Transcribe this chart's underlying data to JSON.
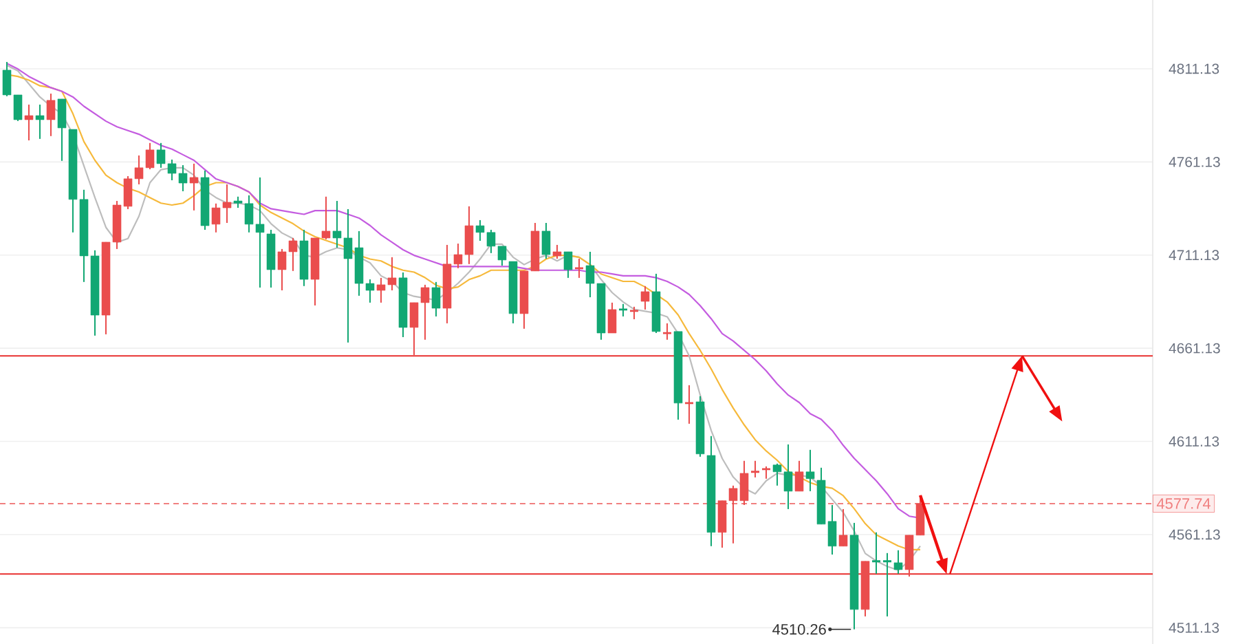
{
  "chart_data": {
    "type": "candlestick",
    "categories": [
      null,
      null,
      null,
      null,
      null,
      null,
      null,
      null,
      null,
      null,
      null,
      null,
      null,
      null,
      null,
      null,
      null,
      null,
      null,
      null,
      null,
      null,
      null,
      null,
      null,
      null,
      null,
      null,
      null,
      null,
      null,
      null,
      null,
      null,
      null,
      null,
      null,
      null,
      null,
      null,
      null,
      null,
      null,
      null,
      null,
      null,
      null,
      null,
      null,
      null,
      null,
      null,
      null,
      null,
      null,
      null,
      null,
      null,
      null,
      null,
      null,
      null,
      null,
      null,
      null,
      null,
      null,
      null,
      null,
      null,
      null,
      null,
      null,
      null,
      null,
      null,
      null,
      null,
      null,
      null,
      null,
      null,
      null,
      null
    ],
    "ohlc": [
      [
        4810.4,
        4814.8,
        4796.4,
        4797.1
      ],
      [
        4797.1,
        4797.1,
        4783.1,
        4783.8
      ],
      [
        4783.8,
        4791.9,
        4772.7,
        4786.0
      ],
      [
        4786.0,
        4791.9,
        4773.5,
        4783.8
      ],
      [
        4783.8,
        4797.8,
        4775.0,
        4794.2
      ],
      [
        4794.9,
        4794.9,
        4761.7,
        4779.4
      ],
      [
        4778.6,
        4778.6,
        4723.3,
        4741.0
      ],
      [
        4741.0,
        4746.2,
        4696.7,
        4710.7
      ],
      [
        4710.7,
        4713.7,
        4667.9,
        4678.9
      ],
      [
        4678.9,
        4718.1,
        4668.6,
        4718.1
      ],
      [
        4718.1,
        4740.2,
        4714.4,
        4738.0
      ],
      [
        4737.3,
        4753.5,
        4735.8,
        4752.1
      ],
      [
        4752.1,
        4764.6,
        4749.1,
        4758.0
      ],
      [
        4758.0,
        4771.3,
        4757.2,
        4767.6
      ],
      [
        4767.6,
        4771.3,
        4758.0,
        4760.2
      ],
      [
        4760.2,
        4762.4,
        4751.3,
        4755.0
      ],
      [
        4755.0,
        4759.4,
        4745.4,
        4749.8
      ],
      [
        4749.8,
        4760.2,
        4735.1,
        4752.8
      ],
      [
        4752.8,
        4756.5,
        4724.7,
        4726.9
      ],
      [
        4727.7,
        4738.8,
        4723.3,
        4736.5
      ],
      [
        4736.5,
        4749.1,
        4728.4,
        4739.5
      ],
      [
        4740.2,
        4742.5,
        4736.5,
        4739.0
      ],
      [
        4738.8,
        4743.2,
        4723.3,
        4727.7
      ],
      [
        4727.7,
        4752.8,
        4693.7,
        4723.3
      ],
      [
        4722.5,
        4724.7,
        4693.7,
        4703.3
      ],
      [
        4703.3,
        4714.4,
        4692.2,
        4712.9
      ],
      [
        4712.9,
        4720.3,
        4702.6,
        4718.8
      ],
      [
        4718.8,
        4724.7,
        4694.5,
        4698.1
      ],
      [
        4698.1,
        4720.3,
        4684.1,
        4720.3
      ],
      [
        4720.3,
        4742.5,
        4719.6,
        4724.0
      ],
      [
        4724.0,
        4740.2,
        4715.1,
        4720.3
      ],
      [
        4720.3,
        4735.8,
        4664.2,
        4709.2
      ],
      [
        4715.1,
        4724.0,
        4689.3,
        4695.9
      ],
      [
        4695.9,
        4698.1,
        4685.6,
        4692.2
      ],
      [
        4692.2,
        4698.9,
        4685.6,
        4695.2
      ],
      [
        4695.2,
        4710.0,
        4692.2,
        4698.9
      ],
      [
        4698.9,
        4701.8,
        4667.1,
        4672.3
      ],
      [
        4672.3,
        4685.6,
        4657.5,
        4685.6
      ],
      [
        4685.6,
        4695.2,
        4665.7,
        4693.7
      ],
      [
        4693.7,
        4696.7,
        4678.2,
        4682.6
      ],
      [
        4682.6,
        4716.6,
        4674.5,
        4706.3
      ],
      [
        4706.3,
        4717.3,
        4704.1,
        4711.4
      ],
      [
        4711.4,
        4737.3,
        4706.3,
        4726.9
      ],
      [
        4726.9,
        4729.9,
        4718.8,
        4723.3
      ],
      [
        4723.3,
        4724.7,
        4712.2,
        4715.9
      ],
      [
        4715.9,
        4715.9,
        4705.5,
        4708.5
      ],
      [
        4707.7,
        4707.7,
        4674.5,
        4679.7
      ],
      [
        4679.7,
        4702.6,
        4671.6,
        4702.6
      ],
      [
        4702.6,
        4728.4,
        4702.6,
        4724.0
      ],
      [
        4724.0,
        4728.4,
        4709.2,
        4711.4
      ],
      [
        4710.7,
        4716.6,
        4709.2,
        4712.9
      ],
      [
        4712.9,
        4712.9,
        4698.9,
        4703.3
      ],
      [
        4704.1,
        4709.2,
        4698.9,
        4704.1
      ],
      [
        4705.5,
        4712.9,
        4688.5,
        4695.9
      ],
      [
        4695.9,
        4695.9,
        4665.7,
        4669.3
      ],
      [
        4669.3,
        4685.6,
        4669.3,
        4681.9
      ],
      [
        4681.9,
        4684.9,
        4678.2,
        4681.9
      ],
      [
        4681.2,
        4683.4,
        4676.7,
        4681.2
      ],
      [
        4686.3,
        4694.5,
        4681.9,
        4691.5
      ],
      [
        4691.5,
        4701.1,
        4669.3,
        4670.1
      ],
      [
        4669.3,
        4674.5,
        4665.7,
        4669.3
      ],
      [
        4670.1,
        4670.1,
        4622.8,
        4631.7
      ],
      [
        4631.7,
        4641.3,
        4620.6,
        4631.7
      ],
      [
        4632.4,
        4635.4,
        4602.9,
        4604.4
      ],
      [
        4603.6,
        4614.0,
        4554.9,
        4562.3
      ],
      [
        4562.3,
        4579.3,
        4554.1,
        4579.3
      ],
      [
        4579.3,
        4587.4,
        4556.4,
        4585.9
      ],
      [
        4579.3,
        4600.7,
        4577.0,
        4594.0
      ],
      [
        4594.8,
        4600.7,
        4591.8,
        4594.8
      ],
      [
        4596.2,
        4597.7,
        4591.1,
        4596.2
      ],
      [
        4598.5,
        4599.2,
        4587.4,
        4594.8
      ],
      [
        4594.8,
        4609.5,
        4574.8,
        4584.4
      ],
      [
        4584.4,
        4600.7,
        4584.4,
        4594.8
      ],
      [
        4594.8,
        4606.6,
        4584.4,
        4591.1
      ],
      [
        4590.3,
        4597.0,
        4566.7,
        4566.7
      ],
      [
        4568.2,
        4577.0,
        4550.4,
        4554.9
      ],
      [
        4554.9,
        4574.8,
        4554.9,
        4560.8
      ],
      [
        4560.8,
        4567.4,
        4510.26,
        4520.9
      ],
      [
        4520.9,
        4546.8,
        4517.2,
        4546.8
      ],
      [
        4546.8,
        4562.3,
        4540.1,
        4546.8
      ],
      [
        4546.8,
        4551.2,
        4517.2,
        4546.8
      ],
      [
        4546.0,
        4552.7,
        4540.1,
        4542.3
      ],
      [
        4542.3,
        4560.8,
        4538.6,
        4560.8
      ],
      [
        4560.8,
        4582.2,
        4560.8,
        4577.74
      ]
    ],
    "colors": [
      "#12a773",
      "#12a773",
      "#ea4d4d",
      "#12a773",
      "#ea4d4d",
      "#12a773",
      "#12a773",
      "#12a773",
      "#12a773",
      "#ea4d4d",
      "#ea4d4d",
      "#ea4d4d",
      "#ea4d4d",
      "#ea4d4d",
      "#12a773",
      "#12a773",
      "#12a773",
      "#ea4d4d",
      "#12a773",
      "#ea4d4d",
      "#ea4d4d",
      "#12a773",
      "#12a773",
      "#12a773",
      "#12a773",
      "#ea4d4d",
      "#ea4d4d",
      "#12a773",
      "#ea4d4d",
      "#ea4d4d",
      "#12a773",
      "#12a773",
      "#12a773",
      "#12a773",
      "#ea4d4d",
      "#ea4d4d",
      "#12a773",
      "#ea4d4d",
      "#ea4d4d",
      "#12a773",
      "#ea4d4d",
      "#ea4d4d",
      "#ea4d4d",
      "#12a773",
      "#12a773",
      "#12a773",
      "#12a773",
      "#ea4d4d",
      "#ea4d4d",
      "#12a773",
      "#ea4d4d",
      "#12a773",
      "#ea4d4d",
      "#12a773",
      "#12a773",
      "#ea4d4d",
      "#12a773",
      "#ea4d4d",
      "#ea4d4d",
      "#12a773",
      "#ea4d4d",
      "#12a773",
      "#ea4d4d",
      "#12a773",
      "#12a773",
      "#ea4d4d",
      "#ea4d4d",
      "#ea4d4d",
      "#ea4d4d",
      "#ea4d4d",
      "#12a773",
      "#12a773",
      "#ea4d4d",
      "#12a773",
      "#12a773",
      "#12a773",
      "#ea4d4d",
      "#12a773",
      "#ea4d4d",
      "#12a773",
      "#12a773",
      "#12a773",
      "#ea4d4d",
      "#ea4d4d"
    ],
    "series": [
      {
        "type": "line",
        "color": "#bdbdbd",
        "values": [
          4813,
          4810,
          4803,
          4796,
          4791,
          4787,
          4776,
          4759,
          4742,
          4726,
          4718,
          4720,
          4732,
          4750,
          4757,
          4758,
          4758,
          4754,
          4746,
          4742,
          4739,
          4739,
          4738,
          4735,
          4728,
          4723,
          4720,
          4711,
          4710,
          4713,
          4715,
          4714,
          4710,
          4707,
          4700,
          4697,
          4691,
          4689,
          4688,
          4687,
          4691,
          4696,
          4702,
          4709,
          4717,
          4717,
          4710,
          4706,
          4709,
          4711,
          4708,
          4711,
          4710,
          4706,
          4698,
          4691,
          4686,
          4682,
          4681,
          4680,
          4678,
          4669,
          4657,
          4636,
          4617,
          4602,
          4592,
          4586,
          4583,
          4590,
          4594,
          4593,
          4593,
          4592,
          4587,
          4580,
          4573,
          4563,
          4551,
          4547,
          4544,
          4542,
          4547,
          4555
        ]
      },
      {
        "type": "line",
        "color": "#f6b93b",
        "values": [
          4808,
          4807,
          4805,
          4802,
          4801,
          4799,
          4787,
          4772,
          4762,
          4754,
          4750,
          4747,
          4745,
          4742,
          4739,
          4738,
          4739,
          4743,
          4748,
          4750,
          4750,
          4748,
          4745,
          4738,
          4734,
          4731,
          4728,
          4724,
          4721,
          4719,
          4717,
          4715,
          4711,
          4709,
          4708,
          4705,
          4703,
          4702,
          4699,
          4695,
          4693,
          4694,
          4698,
          4700,
          4703,
          4703,
          4703,
          4703,
          4705,
          4709,
          4711,
          4711,
          4710,
          4706,
          4701,
          4699,
          4697,
          4697,
          4694,
          4690,
          4686,
          4679,
          4669,
          4660,
          4650,
          4639,
          4629,
          4620,
          4612,
          4606,
          4601,
          4595,
          4592,
          4589,
          4587,
          4586,
          4582,
          4575,
          4567,
          4561,
          4558,
          4555,
          4553,
          4553
        ]
      },
      {
        "type": "line",
        "color": "#c45ce0",
        "values": [
          4814,
          4811,
          4807,
          4804,
          4801,
          4799,
          4796,
          4791,
          4787,
          4783,
          4780,
          4778,
          4776,
          4773,
          4770,
          4768,
          4765,
          4762,
          4757,
          4752,
          4750,
          4748,
          4745,
          4739,
          4736,
          4735,
          4734,
          4733,
          4735,
          4735,
          4735,
          4733,
          4731,
          4727,
          4722,
          4718,
          4714,
          4711,
          4709,
          4707,
          4705,
          4705,
          4705,
          4705,
          4705,
          4705,
          4705,
          4704,
          4703,
          4703,
          4703,
          4703,
          4703,
          4702,
          4702,
          4701,
          4700,
          4700,
          4700,
          4699,
          4697,
          4694,
          4690,
          4684,
          4677,
          4669,
          4665,
          4660,
          4655,
          4649,
          4642,
          4636,
          4632,
          4626,
          4623,
          4617,
          4609,
          4602,
          4596,
          4590,
          4583,
          4575,
          4571,
          4570
        ]
      }
    ],
    "ylim": [
      4502.4,
      4848.06
    ],
    "yticks": [
      4511.13,
      4561.13,
      4611.13,
      4661.13,
      4711.13,
      4761.13,
      4811.13
    ],
    "grid": "y",
    "tick_labels": "y",
    "ref_lines": [
      {
        "axis": "y",
        "value": 4657,
        "color": "#e8302f"
      },
      {
        "axis": "y",
        "value": 4540,
        "color": "#e8302f"
      },
      {
        "axis": "y",
        "value": 4577.74,
        "label": "4577.74",
        "color": "#f08080",
        "line_style": "dashed"
      }
    ],
    "annotations": [
      "4510.26"
    ]
  }
}
